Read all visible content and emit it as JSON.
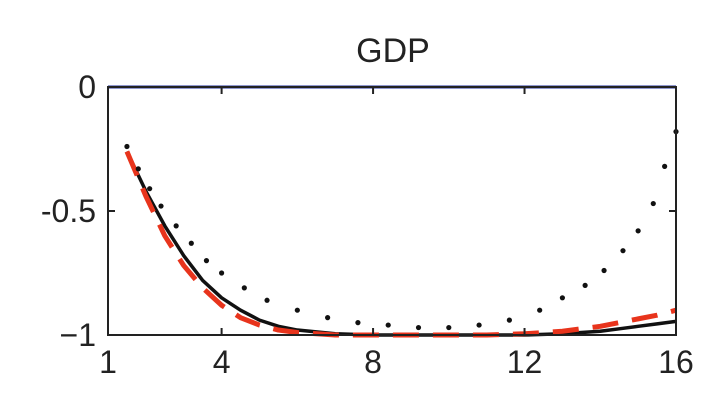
{
  "chart_data": {
    "type": "line",
    "title": "GDP",
    "xlabel": "",
    "ylabel": "",
    "xlim": [
      1,
      16
    ],
    "ylim": [
      -1,
      0
    ],
    "x_ticks": [
      1,
      4,
      8,
      12,
      16
    ],
    "y_ticks": [
      0,
      -0.5,
      -1
    ],
    "x_tick_labels": [
      "1",
      "4",
      "8",
      "12",
      "16"
    ],
    "y_tick_labels": [
      "0",
      "-0.5",
      "−1"
    ],
    "grid": false,
    "legend": "none",
    "series": [
      {
        "style": "solid",
        "color": "#1f2f9c",
        "x": [
          1,
          2,
          3,
          4,
          5,
          6,
          7,
          8,
          9,
          10,
          11,
          12,
          13,
          14,
          15,
          16
        ],
        "y": [
          0,
          0,
          0,
          0,
          0,
          0,
          0,
          0,
          0,
          0,
          0,
          0,
          0,
          0,
          0,
          0
        ]
      },
      {
        "style": "solid",
        "color": "#111111",
        "x": [
          1.5,
          2,
          2.5,
          3,
          3.5,
          4,
          4.5,
          5,
          5.5,
          6,
          7,
          8,
          9,
          10,
          11,
          12,
          13,
          14,
          14.5,
          15,
          15.5,
          16
        ],
        "y": [
          -0.26,
          -0.42,
          -0.56,
          -0.68,
          -0.78,
          -0.85,
          -0.9,
          -0.94,
          -0.965,
          -0.98,
          -0.995,
          -1.0,
          -1.0,
          -1.0,
          -1.0,
          -1.0,
          -0.995,
          -0.985,
          -0.975,
          -0.965,
          -0.955,
          -0.945
        ]
      },
      {
        "style": "dashed",
        "color": "#e8341c",
        "x": [
          1.5,
          2,
          2.5,
          3,
          3.5,
          4,
          4.5,
          5,
          5.5,
          6,
          7,
          8,
          9,
          10,
          11,
          12,
          13,
          14,
          14.5,
          15,
          15.5,
          16
        ],
        "y": [
          -0.26,
          -0.44,
          -0.6,
          -0.72,
          -0.81,
          -0.88,
          -0.93,
          -0.96,
          -0.98,
          -0.99,
          -1.0,
          -1.0,
          -1.0,
          -1.0,
          -1.0,
          -0.995,
          -0.985,
          -0.965,
          -0.95,
          -0.935,
          -0.92,
          -0.9
        ]
      },
      {
        "style": "dotted",
        "color": "#111111",
        "x": [
          1.5,
          1.8,
          2.1,
          2.4,
          2.8,
          3.2,
          3.6,
          4.0,
          4.6,
          5.2,
          6.0,
          6.8,
          7.6,
          8.4,
          9.2,
          10.0,
          10.8,
          11.6,
          12.4,
          13.0,
          13.6,
          14.1,
          14.6,
          15.0,
          15.4,
          15.7,
          16.0
        ],
        "y": [
          -0.24,
          -0.33,
          -0.41,
          -0.48,
          -0.56,
          -0.63,
          -0.7,
          -0.75,
          -0.81,
          -0.86,
          -0.9,
          -0.93,
          -0.95,
          -0.96,
          -0.97,
          -0.97,
          -0.96,
          -0.94,
          -0.9,
          -0.85,
          -0.8,
          -0.74,
          -0.66,
          -0.58,
          -0.47,
          -0.32,
          -0.18
        ]
      }
    ]
  }
}
